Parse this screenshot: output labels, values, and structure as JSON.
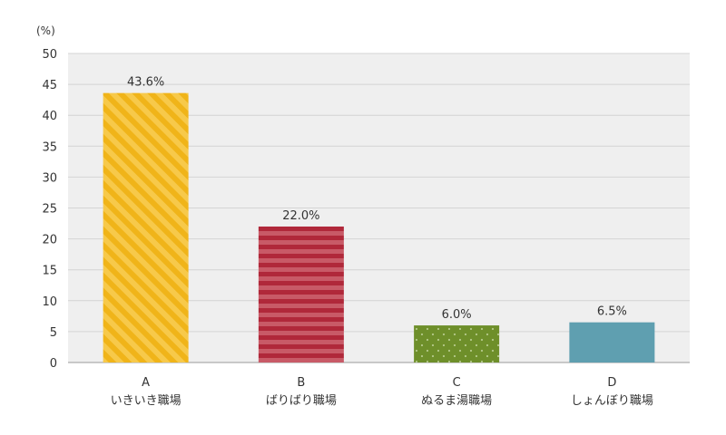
{
  "chart_data": {
    "type": "bar",
    "y_unit": "(%)",
    "ylim": [
      0,
      50
    ],
    "y_ticks": [
      "0",
      "5",
      "10",
      "15",
      "20",
      "25",
      "30",
      "35",
      "40",
      "45",
      "50"
    ],
    "grid": true,
    "categories": [
      {
        "letter": "A",
        "name": "いきいき職場"
      },
      {
        "letter": "B",
        "name": "ばりばり職場"
      },
      {
        "letter": "C",
        "name": "ぬるま湯職場"
      },
      {
        "letter": "D",
        "name": "しょんぼり職場"
      }
    ],
    "values": [
      43.6,
      22.0,
      6.0,
      6.5
    ],
    "value_labels": [
      "43.6%",
      "22.0%",
      "6.0%",
      "6.5%"
    ],
    "colors": [
      "#f0b419",
      "#b0283a",
      "#6e8f2a",
      "#5f9fb0"
    ],
    "patterns": [
      "diagonal-stripes",
      "horizontal-stripes",
      "dots",
      "solid"
    ]
  }
}
